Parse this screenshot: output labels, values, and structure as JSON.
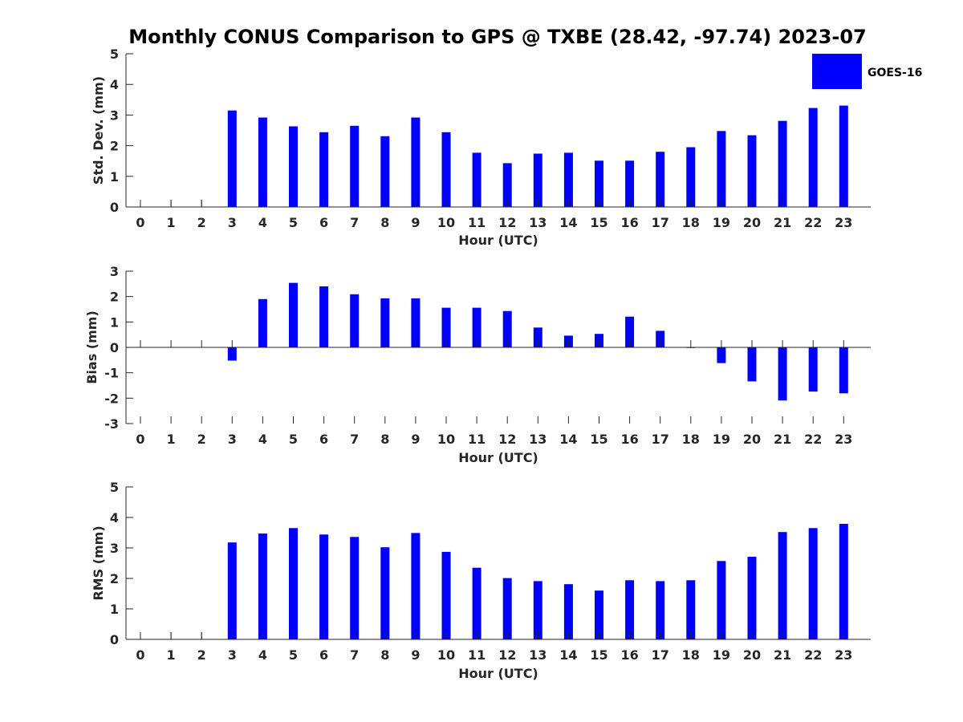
{
  "title": "Monthly CONUS Comparison to GPS @ TXBE (28.42, -97.74) 2023-07",
  "legend": {
    "label": "GOES-16",
    "color": "#0000ff",
    "placement": "top-right"
  },
  "chart_data": [
    {
      "type": "bar",
      "xlabel": "Hour (UTC)",
      "ylabel": "Std. Dev. (mm)",
      "ylim": [
        0,
        5
      ],
      "yticks": [
        0,
        1,
        2,
        3,
        4,
        5
      ],
      "categories": [
        "0",
        "1",
        "2",
        "3",
        "4",
        "5",
        "6",
        "7",
        "8",
        "9",
        "10",
        "11",
        "12",
        "13",
        "14",
        "15",
        "16",
        "17",
        "18",
        "19",
        "20",
        "21",
        "22",
        "23"
      ],
      "series": [
        {
          "name": "GOES-16",
          "color": "#0000ff",
          "values": [
            null,
            null,
            null,
            3.15,
            2.92,
            2.63,
            2.44,
            2.65,
            2.31,
            2.92,
            2.44,
            1.77,
            1.43,
            1.74,
            1.77,
            1.51,
            1.51,
            1.8,
            1.95,
            2.48,
            2.34,
            2.81,
            3.23,
            3.31
          ]
        }
      ]
    },
    {
      "type": "bar",
      "xlabel": "Hour (UTC)",
      "ylabel": "Bias (mm)",
      "ylim": [
        -3,
        3
      ],
      "yticks": [
        -3,
        -2,
        -1,
        0,
        1,
        2,
        3
      ],
      "categories": [
        "0",
        "1",
        "2",
        "3",
        "4",
        "5",
        "6",
        "7",
        "8",
        "9",
        "10",
        "11",
        "12",
        "13",
        "14",
        "15",
        "16",
        "17",
        "18",
        "19",
        "20",
        "21",
        "22",
        "23"
      ],
      "series": [
        {
          "name": "GOES-16",
          "color": "#0000ff",
          "values": [
            null,
            null,
            null,
            -0.52,
            1.9,
            2.54,
            2.4,
            2.09,
            1.93,
            1.93,
            1.56,
            1.56,
            1.43,
            0.78,
            0.46,
            0.53,
            1.21,
            0.65,
            0.0,
            -0.62,
            -1.34,
            -2.09,
            -1.74,
            -1.81
          ]
        }
      ]
    },
    {
      "type": "bar",
      "xlabel": "Hour (UTC)",
      "ylabel": "RMS (mm)",
      "ylim": [
        0,
        5
      ],
      "yticks": [
        0,
        1,
        2,
        3,
        4,
        5
      ],
      "categories": [
        "0",
        "1",
        "2",
        "3",
        "4",
        "5",
        "6",
        "7",
        "8",
        "9",
        "10",
        "11",
        "12",
        "13",
        "14",
        "15",
        "16",
        "17",
        "18",
        "19",
        "20",
        "21",
        "22",
        "23"
      ],
      "series": [
        {
          "name": "GOES-16",
          "color": "#0000ff",
          "values": [
            null,
            null,
            null,
            3.18,
            3.47,
            3.65,
            3.44,
            3.36,
            3.02,
            3.49,
            2.87,
            2.35,
            2.01,
            1.91,
            1.81,
            1.6,
            1.94,
            1.91,
            1.94,
            2.57,
            2.71,
            3.52,
            3.65,
            3.79
          ]
        }
      ]
    }
  ]
}
